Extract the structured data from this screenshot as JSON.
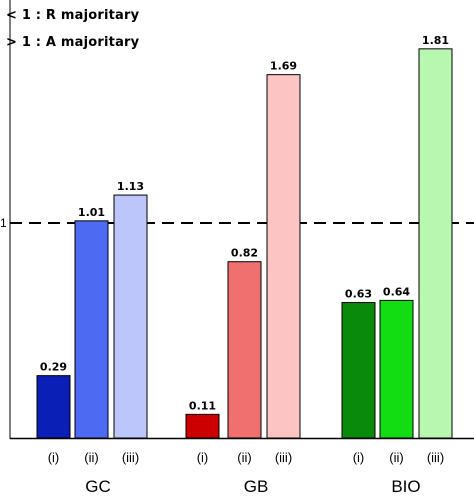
{
  "chart_data": {
    "type": "bar",
    "legend_text": [
      "< 1 : R majoritary",
      "> 1 : A majoritary"
    ],
    "reference_line": {
      "value": 1,
      "label": "1",
      "style": "dashed"
    },
    "ylim": [
      0,
      2
    ],
    "groups": [
      {
        "name": "GC",
        "bars": [
          {
            "category": "(i)",
            "value": 0.29,
            "label": "0.29",
            "color": "#0a1fb5"
          },
          {
            "category": "(ii)",
            "value": 1.01,
            "label": "1.01",
            "color": "#4d6bf2"
          },
          {
            "category": "(iii)",
            "value": 1.13,
            "label": "1.13",
            "color": "#bcc6fb"
          }
        ]
      },
      {
        "name": "GB",
        "bars": [
          {
            "category": "(i)",
            "value": 0.11,
            "label": "0.11",
            "color": "#cc0000"
          },
          {
            "category": "(ii)",
            "value": 0.82,
            "label": "0.82",
            "color": "#f07070"
          },
          {
            "category": "(iii)",
            "value": 1.69,
            "label": "1.69",
            "color": "#fdc4c4"
          }
        ]
      },
      {
        "name": "BIO",
        "bars": [
          {
            "category": "(i)",
            "value": 0.63,
            "label": "0.63",
            "color": "#0a8a0a"
          },
          {
            "category": "(ii)",
            "value": 0.64,
            "label": "0.64",
            "color": "#12dd12"
          },
          {
            "category": "(iii)",
            "value": 1.81,
            "label": "1.81",
            "color": "#b8f7b0"
          }
        ]
      }
    ]
  }
}
